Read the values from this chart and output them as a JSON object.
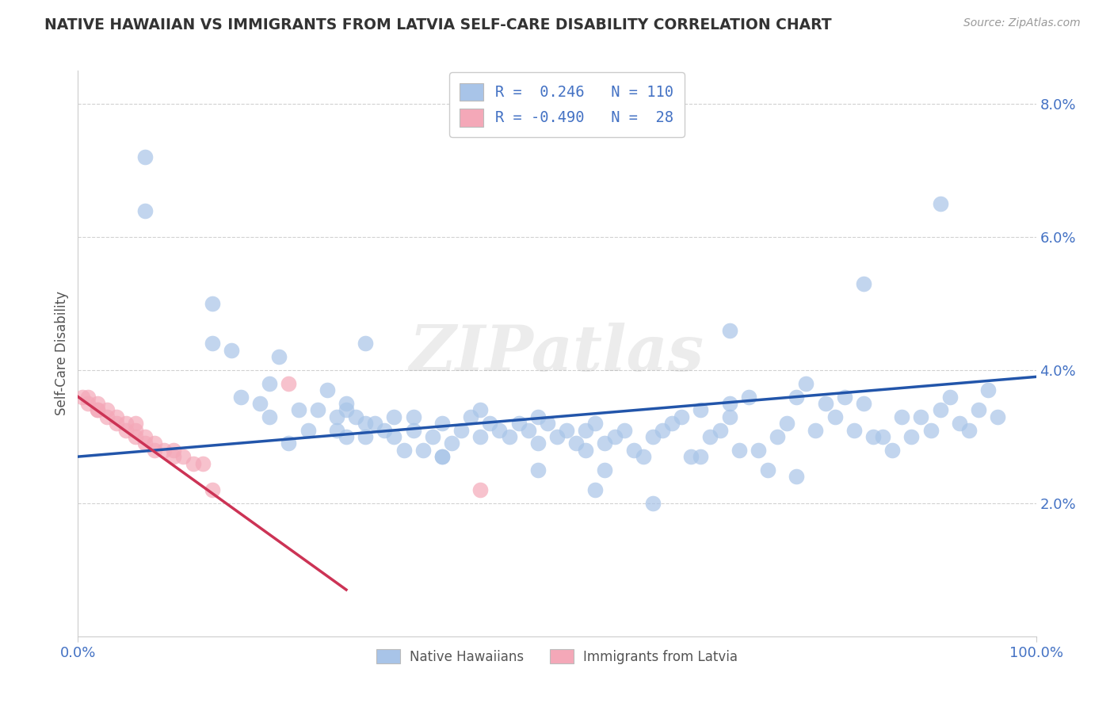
{
  "title": "NATIVE HAWAIIAN VS IMMIGRANTS FROM LATVIA SELF-CARE DISABILITY CORRELATION CHART",
  "source": "Source: ZipAtlas.com",
  "ylabel": "Self-Care Disability",
  "ylim": [
    0.0,
    0.085
  ],
  "xlim": [
    0.0,
    1.0
  ],
  "yticks": [
    0.02,
    0.04,
    0.06,
    0.08
  ],
  "ytick_labels": [
    "2.0%",
    "4.0%",
    "6.0%",
    "8.0%"
  ],
  "color_blue": "#a8c4e8",
  "color_pink": "#f4a8b8",
  "line_blue": "#2255aa",
  "line_pink": "#cc3355",
  "watermark": "ZIPatlas",
  "blue_line_x": [
    0.0,
    1.0
  ],
  "blue_line_y": [
    0.027,
    0.039
  ],
  "pink_line_x": [
    0.0,
    0.28
  ],
  "pink_line_y": [
    0.036,
    0.007
  ],
  "blue_x": [
    0.07,
    0.14,
    0.14,
    0.16,
    0.17,
    0.19,
    0.2,
    0.21,
    0.22,
    0.23,
    0.24,
    0.25,
    0.26,
    0.27,
    0.27,
    0.28,
    0.28,
    0.29,
    0.3,
    0.3,
    0.31,
    0.32,
    0.33,
    0.33,
    0.34,
    0.35,
    0.35,
    0.36,
    0.37,
    0.38,
    0.38,
    0.39,
    0.4,
    0.41,
    0.42,
    0.42,
    0.43,
    0.44,
    0.45,
    0.46,
    0.47,
    0.48,
    0.48,
    0.49,
    0.5,
    0.51,
    0.52,
    0.53,
    0.53,
    0.54,
    0.54,
    0.55,
    0.56,
    0.57,
    0.58,
    0.59,
    0.6,
    0.61,
    0.62,
    0.63,
    0.64,
    0.65,
    0.65,
    0.66,
    0.67,
    0.68,
    0.68,
    0.69,
    0.7,
    0.71,
    0.72,
    0.73,
    0.74,
    0.75,
    0.76,
    0.77,
    0.78,
    0.79,
    0.8,
    0.81,
    0.82,
    0.83,
    0.84,
    0.85,
    0.86,
    0.87,
    0.88,
    0.89,
    0.9,
    0.91,
    0.92,
    0.93,
    0.94,
    0.95,
    0.96,
    0.07,
    0.2,
    0.28,
    0.3,
    0.38,
    0.48,
    0.55,
    0.6,
    0.68,
    0.75,
    0.82,
    0.9
  ],
  "blue_y": [
    0.064,
    0.05,
    0.044,
    0.043,
    0.036,
    0.035,
    0.033,
    0.042,
    0.029,
    0.034,
    0.031,
    0.034,
    0.037,
    0.031,
    0.033,
    0.03,
    0.034,
    0.033,
    0.03,
    0.032,
    0.032,
    0.031,
    0.033,
    0.03,
    0.028,
    0.033,
    0.031,
    0.028,
    0.03,
    0.032,
    0.027,
    0.029,
    0.031,
    0.033,
    0.03,
    0.034,
    0.032,
    0.031,
    0.03,
    0.032,
    0.031,
    0.033,
    0.029,
    0.032,
    0.03,
    0.031,
    0.029,
    0.028,
    0.031,
    0.032,
    0.022,
    0.029,
    0.03,
    0.031,
    0.028,
    0.027,
    0.03,
    0.031,
    0.032,
    0.033,
    0.027,
    0.034,
    0.027,
    0.03,
    0.031,
    0.033,
    0.035,
    0.028,
    0.036,
    0.028,
    0.025,
    0.03,
    0.032,
    0.036,
    0.038,
    0.031,
    0.035,
    0.033,
    0.036,
    0.031,
    0.035,
    0.03,
    0.03,
    0.028,
    0.033,
    0.03,
    0.033,
    0.031,
    0.034,
    0.036,
    0.032,
    0.031,
    0.034,
    0.037,
    0.033,
    0.072,
    0.038,
    0.035,
    0.044,
    0.027,
    0.025,
    0.025,
    0.02,
    0.046,
    0.024,
    0.053,
    0.065
  ],
  "pink_x": [
    0.005,
    0.01,
    0.01,
    0.02,
    0.02,
    0.02,
    0.03,
    0.03,
    0.04,
    0.04,
    0.05,
    0.05,
    0.06,
    0.06,
    0.06,
    0.07,
    0.07,
    0.08,
    0.08,
    0.09,
    0.1,
    0.1,
    0.11,
    0.12,
    0.13,
    0.14,
    0.22,
    0.42
  ],
  "pink_y": [
    0.036,
    0.036,
    0.035,
    0.034,
    0.035,
    0.034,
    0.034,
    0.033,
    0.032,
    0.033,
    0.032,
    0.031,
    0.03,
    0.032,
    0.031,
    0.029,
    0.03,
    0.029,
    0.028,
    0.028,
    0.027,
    0.028,
    0.027,
    0.026,
    0.026,
    0.022,
    0.038,
    0.022
  ]
}
